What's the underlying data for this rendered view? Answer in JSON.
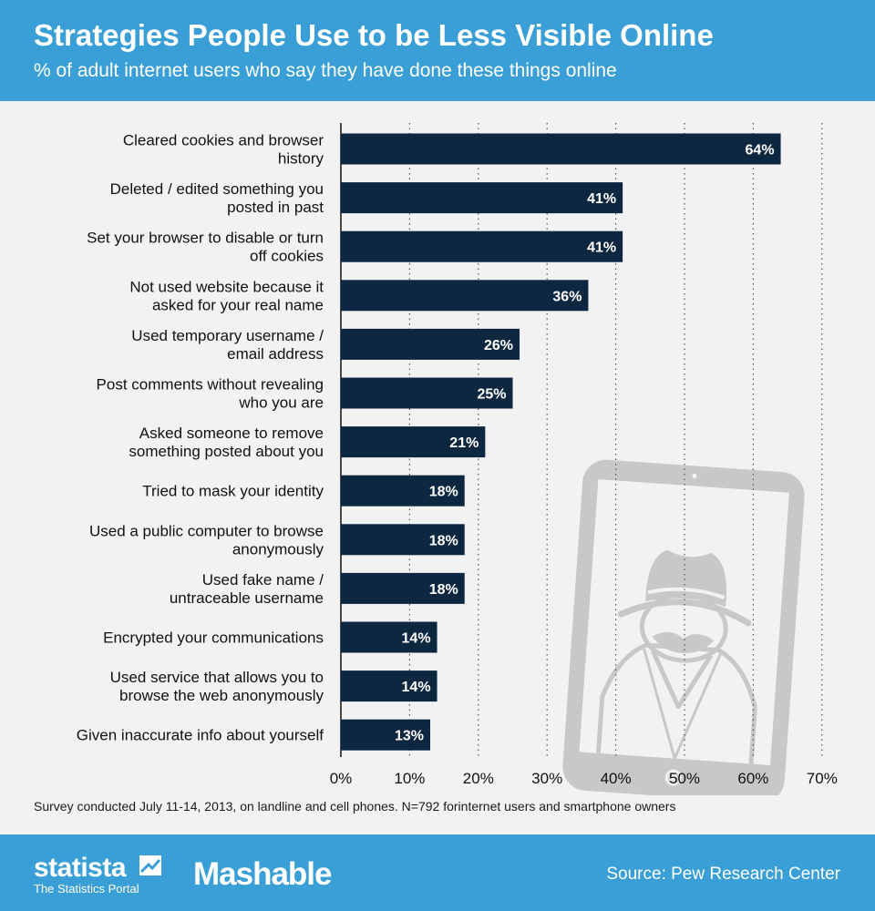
{
  "header": {
    "title": "Strategies People Use to be Less Visible Online",
    "subtitle": "% of adult internet users who say they have done these things online"
  },
  "chart_data": {
    "type": "bar",
    "orientation": "horizontal",
    "categories": [
      [
        "Cleared cookies and browser",
        "history"
      ],
      [
        "Deleted / edited something you",
        "posted in past"
      ],
      [
        "Set your browser to disable or turn",
        "off cookies"
      ],
      [
        "Not used website because it",
        "asked for your real name"
      ],
      [
        "Used temporary username /",
        "email address"
      ],
      [
        "Post comments without revealing",
        "who you are"
      ],
      [
        "Asked someone to remove",
        "something posted about you"
      ],
      [
        "Tried to mask your identity"
      ],
      [
        "Used a public computer to browse",
        "anonymously"
      ],
      [
        "Used fake name /",
        "untraceable username"
      ],
      [
        "Encrypted your communications"
      ],
      [
        "Used service that allows you to",
        "browse the web anonymously"
      ],
      [
        "Given inaccurate info about yourself"
      ]
    ],
    "values": [
      64,
      41,
      41,
      36,
      26,
      25,
      21,
      18,
      18,
      18,
      14,
      14,
      13
    ],
    "value_labels": [
      "64%",
      "41%",
      "41%",
      "36%",
      "26%",
      "25%",
      "21%",
      "18%",
      "18%",
      "18%",
      "14%",
      "14%",
      "13%"
    ],
    "xlim": [
      0,
      70
    ],
    "xticks": [
      0,
      10,
      20,
      30,
      40,
      50,
      60,
      70
    ],
    "xtick_labels": [
      "0%",
      "10%",
      "20%",
      "30%",
      "40%",
      "50%",
      "60%",
      "70%"
    ],
    "grid": "vertical dotted",
    "bar_color": "#0d2740",
    "label_color": "#ffffff"
  },
  "note": "Survey conducted July 11-14, 2013, on landline and cell phones. N=792 forinternet users and smartphone owners",
  "footer": {
    "statista_logo": "statista",
    "statista_tagline": "The Statistics Portal",
    "mashable_logo": "Mashable",
    "source": "Source: Pew Research Center"
  },
  "colors": {
    "header_bg": "#3a9fd6",
    "page_bg": "#f2f2f2",
    "illustration": "#c8c8c8"
  },
  "illustration_icon": "tablet-spy-icon"
}
